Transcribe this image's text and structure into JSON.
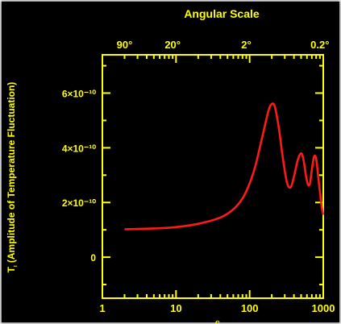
{
  "chart_data": {
    "type": "line",
    "title": "Angular Scale",
    "ylabel": "Tₗ (Amplitude of Temperature Fluctuation)",
    "ylabel_parts": {
      "main": "T",
      "sub": "ₗ",
      "rest": " (Amplitude of Temperature Fluctuation)"
    },
    "xlabel": "ℓ",
    "x_scale": "log",
    "xlim": [
      1,
      1000
    ],
    "ylim": [
      -1.5e-10,
      7.4e-10
    ],
    "bottom_ticks": [
      {
        "value": 1,
        "label": "1"
      },
      {
        "value": 10,
        "label": "10"
      },
      {
        "value": 100,
        "label": "100"
      },
      {
        "value": 1000,
        "label": "1000"
      }
    ],
    "top_ticks": [
      {
        "value": 2,
        "label": "90°"
      },
      {
        "value": 9,
        "label": "20°"
      },
      {
        "value": 90,
        "label": "2°"
      },
      {
        "value": 900,
        "label": "0.2°"
      }
    ],
    "y_ticks": [
      {
        "value": 0,
        "label": "0"
      },
      {
        "value": 2e-10,
        "label": "2×10⁻¹⁰"
      },
      {
        "value": 4e-10,
        "label": "4×10⁻¹⁰"
      },
      {
        "value": 6e-10,
        "label": "6×10⁻¹⁰"
      }
    ],
    "series": [
      {
        "color": "#ff1a1a",
        "x": [
          2,
          5,
          10,
          20,
          40,
          60,
          80,
          100,
          120,
          150,
          180,
          200,
          220,
          250,
          280,
          320,
          360,
          400,
          450,
          500,
          540,
          580,
          620,
          660,
          700,
          750,
          800,
          850,
          900,
          950,
          1000
        ],
        "y": [
          1.02e-10,
          1.05e-10,
          1.1e-10,
          1.22e-10,
          1.45e-10,
          1.75e-10,
          2.15e-10,
          2.7e-10,
          3.35e-10,
          4.45e-10,
          5.35e-10,
          5.6e-10,
          5.5e-10,
          4.7e-10,
          3.7e-10,
          2.75e-10,
          2.55e-10,
          2.95e-10,
          3.55e-10,
          3.8e-10,
          3.55e-10,
          3e-10,
          2.65e-10,
          2.7e-10,
          3.2e-10,
          3.68e-10,
          3.6e-10,
          3e-10,
          2.4e-10,
          1.85e-10,
          1.55e-10
        ]
      }
    ],
    "colors": {
      "axes": "#ffff00",
      "background": "#000000",
      "curve": "#ff1a1a"
    }
  }
}
